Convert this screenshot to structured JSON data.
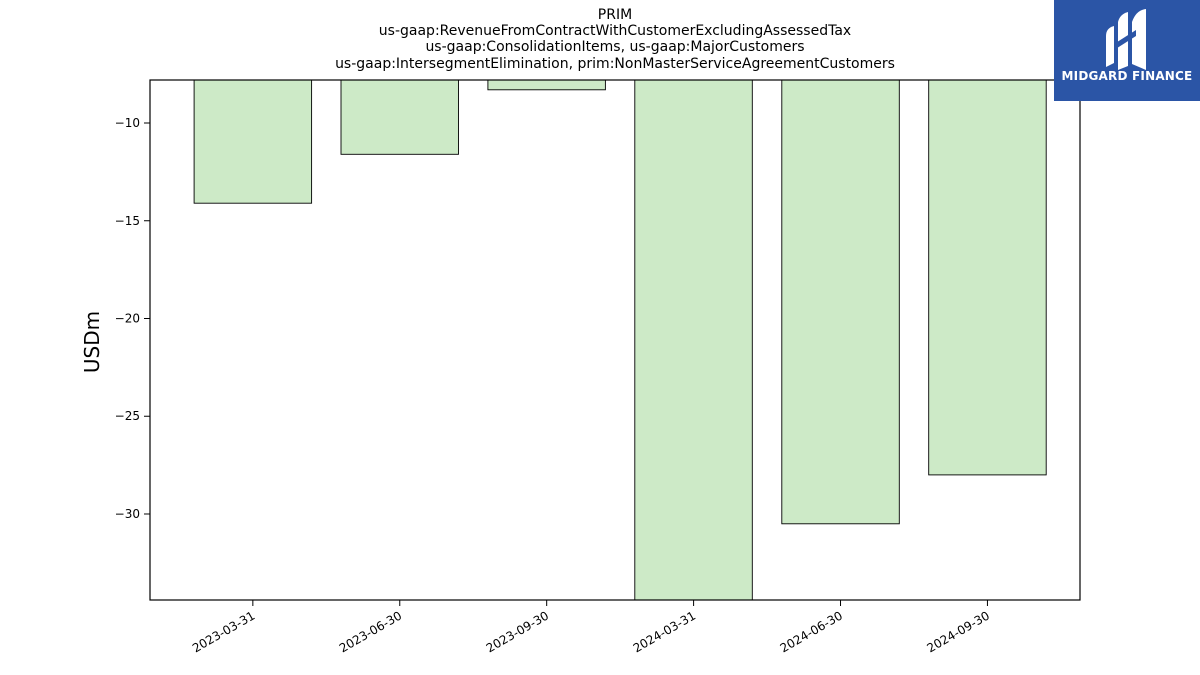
{
  "chart_data": {
    "type": "bar",
    "title_lines": [
      "PRIM",
      "us-gaap:RevenueFromContractWithCustomerExcludingAssessedTax",
      "us-gaap:ConsolidationItems, us-gaap:MajorCustomers",
      "us-gaap:IntersegmentElimination, prim:NonMasterServiceAgreementCustomers"
    ],
    "ylabel": "USDm",
    "xlabel": "",
    "categories": [
      "2023-03-31",
      "2023-06-30",
      "2023-09-30",
      "2024-03-31",
      "2024-06-30",
      "2024-09-30"
    ],
    "values": [
      -14.1,
      -11.6,
      -8.3,
      -35.0,
      -30.5,
      -28.0
    ],
    "ylim": [
      -34.4,
      -7.8
    ],
    "yticks": [
      -10,
      -15,
      -20,
      -25,
      -30
    ],
    "bar_color": "#cdeac7",
    "bar_edge_color": "#000000",
    "grid": false
  },
  "logo": {
    "text": "MIDGARD FINANCE",
    "background": "#2b55a6"
  }
}
